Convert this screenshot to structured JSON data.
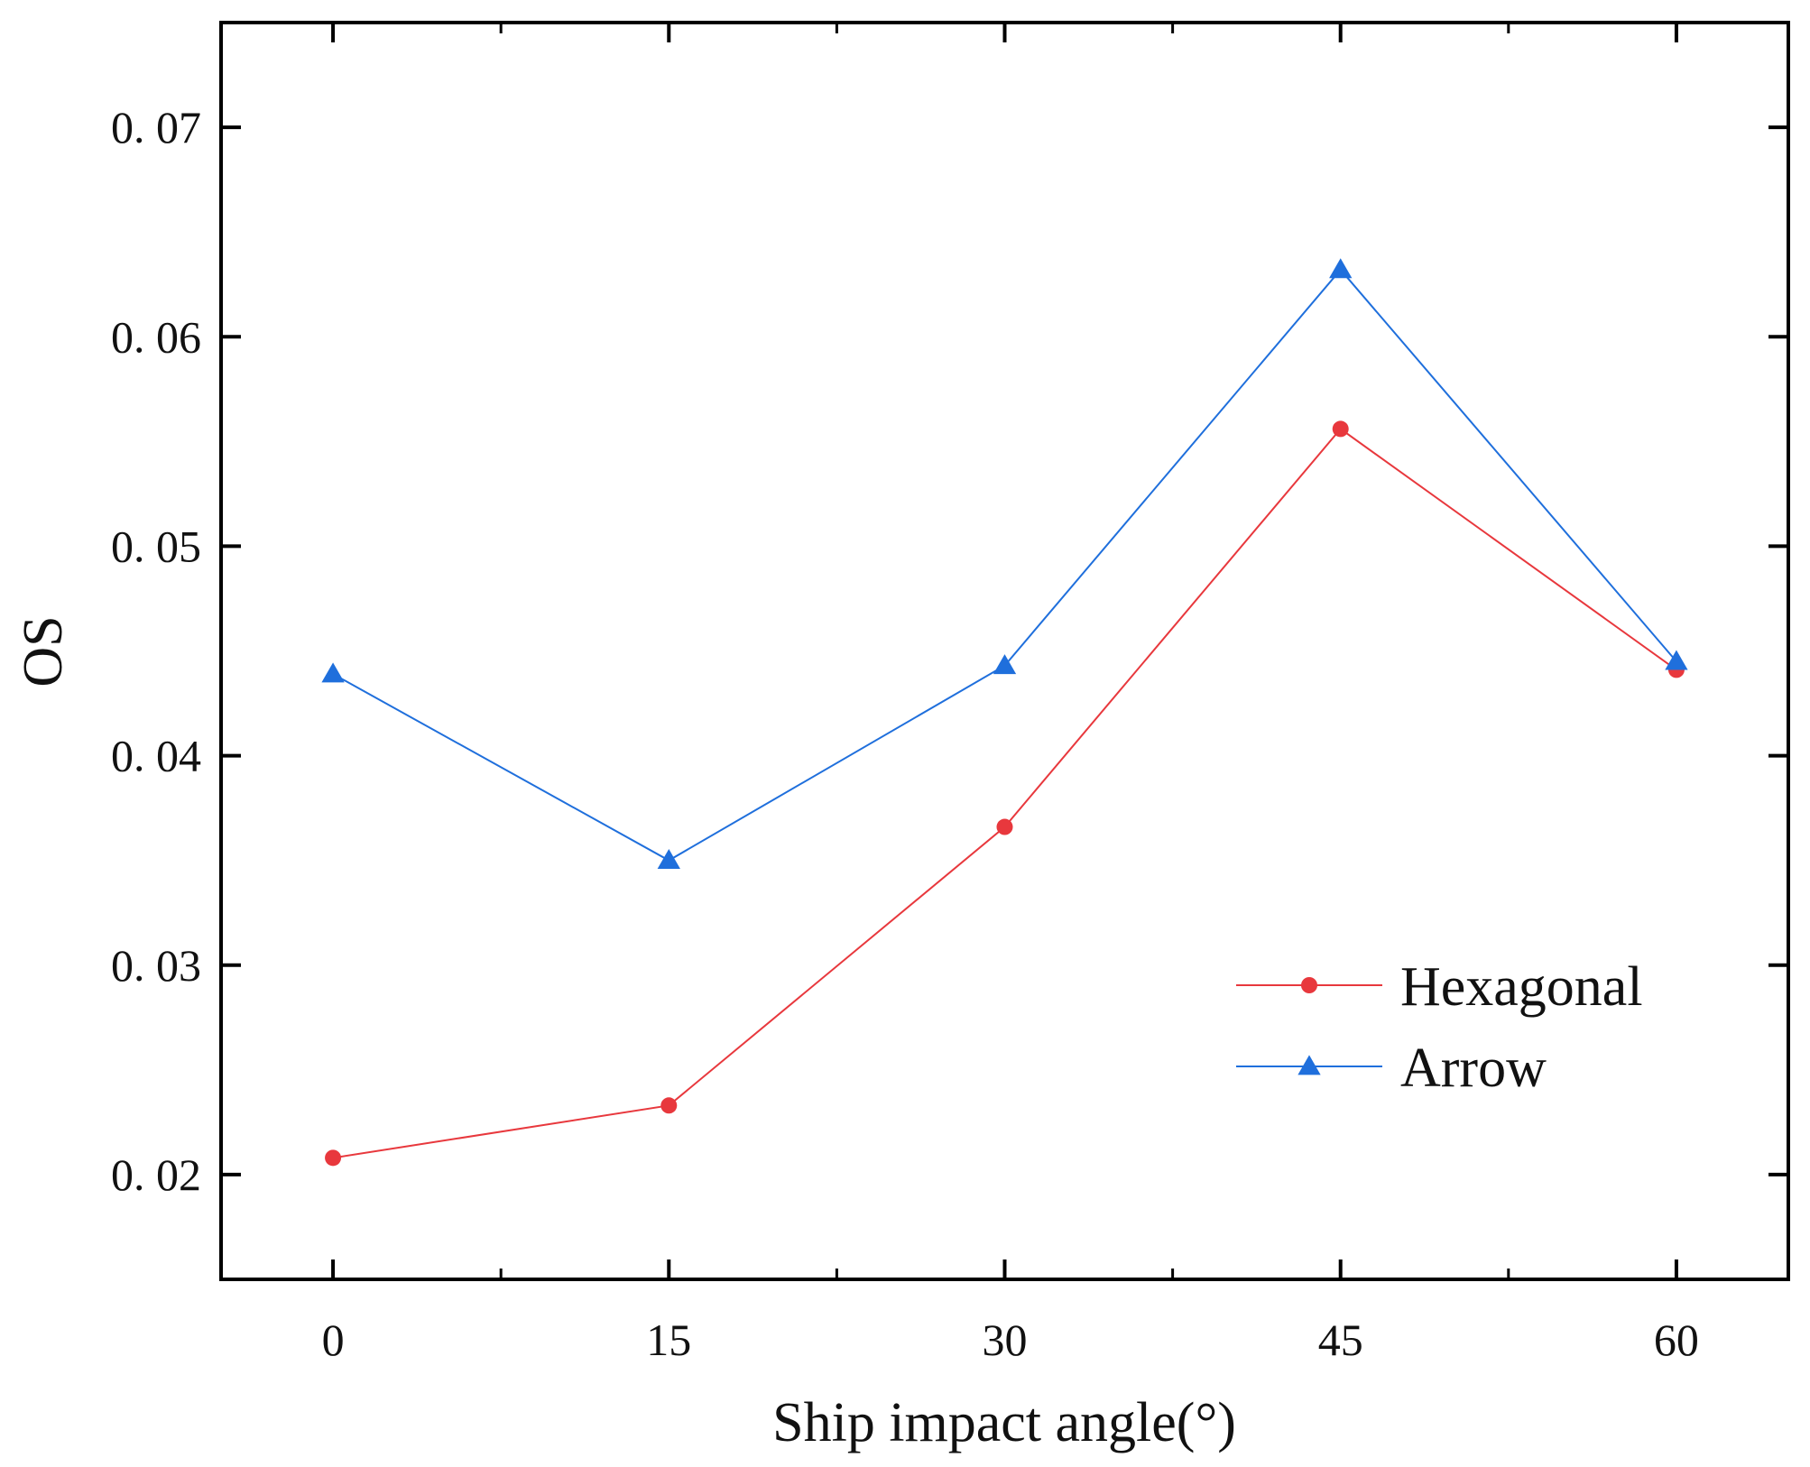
{
  "chart_data": {
    "type": "line",
    "xlabel": "Ship impact angle(°)",
    "ylabel": "OS",
    "x": [
      0,
      15,
      30,
      45,
      60
    ],
    "x_ticks": [
      0,
      15,
      30,
      45,
      60
    ],
    "x_tick_labels": [
      "0",
      "15",
      "30",
      "45",
      "60"
    ],
    "xlim": [
      -5,
      65
    ],
    "y_ticks": [
      0.02,
      0.03,
      0.04,
      0.05,
      0.06,
      0.07
    ],
    "y_tick_labels": [
      "0. 02",
      "0. 03",
      "0. 04",
      "0. 05",
      "0. 06",
      "0. 07"
    ],
    "ylim": [
      0.015,
      0.075
    ],
    "grid": false,
    "legend_position": "lower-right",
    "series": [
      {
        "name": "Hexagonal",
        "marker": "circle",
        "color": "#e8383d",
        "values": [
          0.0208,
          0.0233,
          0.0366,
          0.0556,
          0.0441
        ]
      },
      {
        "name": "Arrow",
        "marker": "triangle",
        "color": "#1f6fdc",
        "values": [
          0.0439,
          0.035,
          0.0443,
          0.0632,
          0.0445
        ]
      }
    ]
  }
}
